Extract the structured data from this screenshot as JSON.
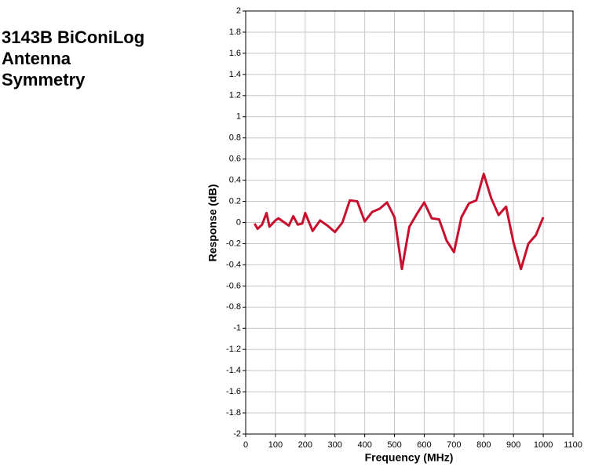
{
  "chart_data": {
    "type": "line",
    "title": [
      "3143B BiConiLog",
      "Antenna",
      "Symmetry"
    ],
    "x_label": "Frequency (MHz)",
    "y_label": "Response (dB)",
    "x": [
      30,
      40,
      55,
      70,
      80,
      100,
      110,
      130,
      145,
      160,
      175,
      190,
      200,
      225,
      250,
      275,
      300,
      325,
      350,
      375,
      400,
      425,
      450,
      475,
      500,
      525,
      550,
      575,
      600,
      625,
      650,
      675,
      700,
      725,
      750,
      775,
      800,
      825,
      850,
      875,
      900,
      925,
      950,
      975,
      1000
    ],
    "series": [
      {
        "color": "#c8102e",
        "values": [
          -0.01,
          -0.06,
          -0.02,
          0.09,
          -0.04,
          0.02,
          0.04,
          0.0,
          -0.03,
          0.06,
          -0.02,
          -0.01,
          0.09,
          -0.08,
          0.02,
          -0.03,
          -0.09,
          0.0,
          0.21,
          0.2,
          0.01,
          0.1,
          0.13,
          0.19,
          0.05,
          -0.44,
          -0.04,
          0.08,
          0.19,
          0.04,
          0.03,
          -0.17,
          -0.28,
          0.05,
          0.18,
          0.21,
          0.46,
          0.23,
          0.07,
          0.15,
          -0.19,
          -0.44,
          -0.2,
          -0.12,
          0.05
        ]
      }
    ],
    "xlim": [
      0,
      1100
    ],
    "xticks": [
      0,
      100,
      200,
      300,
      400,
      500,
      600,
      700,
      800,
      900,
      1000,
      1100
    ],
    "ylim": [
      -2,
      2
    ],
    "yticks": [
      -2,
      -1.8,
      -1.6,
      -1.4,
      -1.2,
      -1,
      -0.8,
      -0.6,
      -0.4,
      -0.2,
      0,
      0.2,
      0.4,
      0.6,
      0.8,
      1,
      1.2,
      1.4,
      1.6,
      1.8,
      2
    ],
    "grid": true
  }
}
